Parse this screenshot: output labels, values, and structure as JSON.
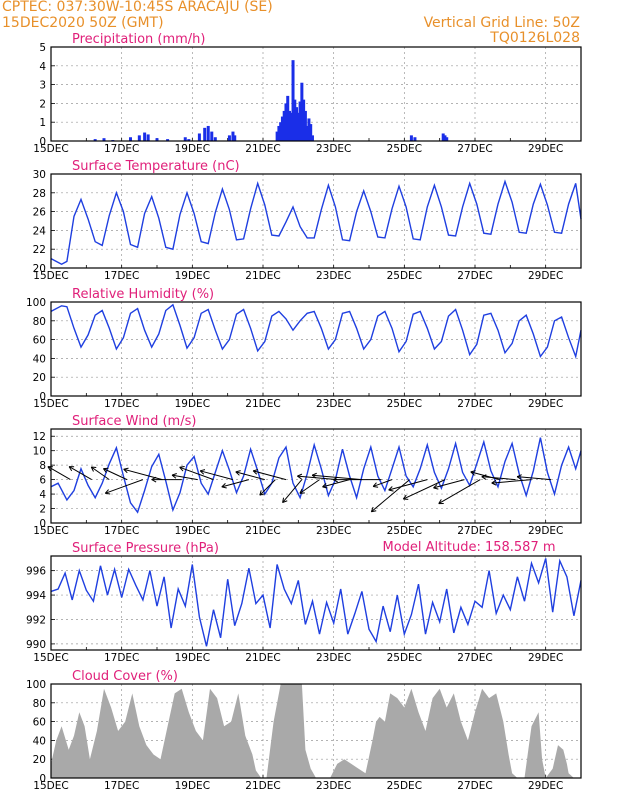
{
  "header": {
    "station": "CPTEC:   037:30W-10:45S   ARACAJU (SE)",
    "run": "15DEC2020 50Z (GMT)",
    "grid_line": "Vertical Grid Line: 50Z",
    "code": "TQ0126L028"
  },
  "colors": {
    "header": "#e8902a",
    "title": "#e0207a",
    "line": "#1f3fe0",
    "bar": "#1a2ee8",
    "cloud": "#a9a9a9",
    "grid": "#9a9a9a"
  },
  "x_tick_labels": [
    "15DEC",
    "17DEC",
    "19DEC",
    "21DEC",
    "23DEC",
    "25DEC",
    "27DEC",
    "29DEC"
  ],
  "x_tick_days": [
    0,
    2,
    4,
    6,
    8,
    10,
    12,
    14
  ],
  "chart_data": [
    {
      "type": "bar",
      "title": "Precipitation (mm/h)",
      "ylim": [
        0,
        5
      ],
      "yticks": [
        0,
        1,
        2,
        3,
        4,
        5
      ],
      "x": [
        1.25,
        1.5,
        1.75,
        2.25,
        2.5,
        2.65,
        2.75,
        3.0,
        3.3,
        3.8,
        3.9,
        4.2,
        4.35,
        4.45,
        4.55,
        4.65,
        5.05,
        5.15,
        5.2,
        6.4,
        6.45,
        6.5,
        6.55,
        6.6,
        6.65,
        6.7,
        6.75,
        6.8,
        6.85,
        6.9,
        6.95,
        7.0,
        7.05,
        7.1,
        7.15,
        7.2,
        7.25,
        7.3,
        7.35,
        7.4,
        10.2,
        10.3,
        11.1,
        11.15,
        11.2
      ],
      "values": [
        0.1,
        0.15,
        0.05,
        0.2,
        0.3,
        0.45,
        0.35,
        0.15,
        0.1,
        0.2,
        0.1,
        0.4,
        0.7,
        0.8,
        0.5,
        0.2,
        0.3,
        0.5,
        0.3,
        0.5,
        0.8,
        1.0,
        1.3,
        1.6,
        2.0,
        2.4,
        1.6,
        1.5,
        4.3,
        2.2,
        1.8,
        1.5,
        2.1,
        3.1,
        2.2,
        1.6,
        0.8,
        1.2,
        0.9,
        0.3,
        0.3,
        0.2,
        0.4,
        0.3,
        0.2
      ]
    },
    {
      "type": "line",
      "title": "Surface Temperature (nC)",
      "ylim": [
        20,
        30
      ],
      "yticks": [
        20,
        22,
        24,
        26,
        28,
        30
      ],
      "x": [
        0,
        0.3,
        0.45,
        0.65,
        0.85,
        1.05,
        1.25,
        1.45,
        1.65,
        1.85,
        2.05,
        2.25,
        2.45,
        2.65,
        2.85,
        3.05,
        3.25,
        3.45,
        3.65,
        3.85,
        4.05,
        4.25,
        4.45,
        4.65,
        4.85,
        5.05,
        5.25,
        5.45,
        5.65,
        5.85,
        6.05,
        6.25,
        6.45,
        6.65,
        6.85,
        7.05,
        7.25,
        7.45,
        7.65,
        7.85,
        8.05,
        8.25,
        8.45,
        8.65,
        8.85,
        9.05,
        9.25,
        9.45,
        9.65,
        9.85,
        10.05,
        10.25,
        10.45,
        10.65,
        10.85,
        11.05,
        11.25,
        11.45,
        11.65,
        11.85,
        12.05,
        12.25,
        12.45,
        12.65,
        12.85,
        13.05,
        13.25,
        13.45,
        13.65,
        13.85,
        14.05,
        14.25,
        14.45,
        14.65,
        14.85,
        15.0
      ],
      "values": [
        21,
        20.4,
        20.7,
        25.5,
        27.3,
        25.2,
        22.8,
        22.4,
        25.6,
        28,
        26,
        22.5,
        22.2,
        25.8,
        27.6,
        25.3,
        22.2,
        22,
        25.7,
        28,
        25.8,
        22.8,
        22.6,
        25.9,
        28.4,
        26.2,
        23,
        23.1,
        26.3,
        29,
        26.7,
        23.5,
        23.4,
        24.9,
        26.5,
        24.4,
        23.2,
        23.2,
        26.2,
        28.8,
        26.5,
        23,
        22.9,
        26,
        28.2,
        26,
        23.3,
        23.2,
        26.3,
        28.7,
        26.5,
        23.1,
        23,
        26.5,
        28.8,
        26.5,
        23.5,
        23.4,
        26.5,
        29,
        26.8,
        23.7,
        23.6,
        26.8,
        29.2,
        27,
        23.8,
        23.7,
        26.8,
        28.9,
        26.7,
        23.8,
        23.7,
        26.8,
        29,
        25.2
      ]
    },
    {
      "type": "line",
      "title": "Relative Humidity (%)",
      "ylim": [
        0,
        100
      ],
      "yticks": [
        0,
        20,
        40,
        60,
        80,
        100
      ],
      "x": [
        0,
        0.3,
        0.45,
        0.65,
        0.85,
        1.05,
        1.25,
        1.45,
        1.65,
        1.85,
        2.05,
        2.25,
        2.45,
        2.65,
        2.85,
        3.05,
        3.25,
        3.45,
        3.65,
        3.85,
        4.05,
        4.25,
        4.45,
        4.65,
        4.85,
        5.05,
        5.25,
        5.45,
        5.65,
        5.85,
        6.05,
        6.25,
        6.45,
        6.65,
        6.85,
        7.05,
        7.25,
        7.45,
        7.65,
        7.85,
        8.05,
        8.25,
        8.45,
        8.65,
        8.85,
        9.05,
        9.25,
        9.45,
        9.65,
        9.85,
        10.05,
        10.25,
        10.45,
        10.65,
        10.85,
        11.05,
        11.25,
        11.45,
        11.65,
        11.85,
        12.05,
        12.25,
        12.45,
        12.65,
        12.85,
        13.05,
        13.25,
        13.45,
        13.65,
        13.85,
        14.05,
        14.25,
        14.45,
        14.65,
        14.85,
        15.0
      ],
      "values": [
        90,
        96,
        95,
        72,
        52,
        65,
        86,
        91,
        72,
        50,
        62,
        88,
        93,
        70,
        52,
        66,
        91,
        97,
        75,
        51,
        62,
        88,
        92,
        70,
        50,
        60,
        87,
        92,
        72,
        48,
        58,
        85,
        90,
        82,
        70,
        80,
        88,
        90,
        72,
        50,
        60,
        88,
        90,
        72,
        50,
        60,
        85,
        90,
        72,
        47,
        58,
        87,
        90,
        72,
        50,
        58,
        85,
        92,
        70,
        44,
        55,
        86,
        88,
        70,
        46,
        56,
        80,
        86,
        66,
        42,
        52,
        80,
        84,
        62,
        42,
        70
      ]
    },
    {
      "type": "line",
      "title": "Surface Wind (m/s)",
      "ylim": [
        0,
        13
      ],
      "yticks": [
        0,
        2,
        4,
        6,
        8,
        10,
        12
      ],
      "x": [
        0,
        0.2,
        0.45,
        0.65,
        0.85,
        1.05,
        1.25,
        1.45,
        1.65,
        1.85,
        2.05,
        2.25,
        2.45,
        2.65,
        2.85,
        3.05,
        3.25,
        3.45,
        3.65,
        3.85,
        4.05,
        4.25,
        4.45,
        4.65,
        4.85,
        5.05,
        5.25,
        5.45,
        5.65,
        5.85,
        6.05,
        6.25,
        6.45,
        6.65,
        6.85,
        7.05,
        7.25,
        7.45,
        7.65,
        7.85,
        8.05,
        8.25,
        8.45,
        8.65,
        8.85,
        9.05,
        9.25,
        9.45,
        9.65,
        9.85,
        10.05,
        10.25,
        10.45,
        10.65,
        10.85,
        11.05,
        11.25,
        11.45,
        11.65,
        11.85,
        12.05,
        12.25,
        12.45,
        12.65,
        12.85,
        13.05,
        13.25,
        13.45,
        13.65,
        13.85,
        14.05,
        14.25,
        14.45,
        14.65,
        14.85,
        15.0
      ],
      "values": [
        5,
        5.5,
        3.2,
        4.5,
        7.5,
        5.2,
        3.5,
        5.5,
        8.2,
        10.4,
        6.5,
        2.8,
        1.5,
        4.5,
        7.8,
        9.5,
        5.8,
        1.8,
        4.2,
        8,
        9.2,
        5.5,
        4,
        7,
        10,
        7.3,
        4.2,
        6.5,
        10.2,
        7.2,
        4,
        5.5,
        9,
        10.5,
        5.5,
        3.5,
        6.8,
        10.8,
        7.5,
        3.8,
        6,
        10.2,
        6.5,
        3.5,
        7.5,
        10.5,
        6.5,
        4.5,
        7.5,
        10.5,
        6.5,
        5,
        7.5,
        10.8,
        7,
        4.8,
        7.5,
        11,
        7,
        5.2,
        8.2,
        11.2,
        7.2,
        5,
        8.5,
        11,
        6.8,
        3.8,
        7.2,
        11.8,
        7,
        4,
        8,
        10.5,
        7.5,
        10
      ]
    },
    {
      "type": "line",
      "title": "Surface Pressure (hPa)",
      "annotation": "Model Altitude: 158.587  m",
      "ylim": [
        989.5,
        997.2
      ],
      "yticks": [
        990,
        992,
        994,
        996
      ],
      "x": [
        0,
        0.2,
        0.4,
        0.6,
        0.8,
        1.0,
        1.2,
        1.4,
        1.6,
        1.8,
        2.0,
        2.2,
        2.4,
        2.6,
        2.8,
        3.0,
        3.2,
        3.4,
        3.6,
        3.8,
        4.0,
        4.2,
        4.4,
        4.6,
        4.8,
        5.0,
        5.2,
        5.4,
        5.6,
        5.8,
        6.0,
        6.2,
        6.4,
        6.6,
        6.8,
        7.0,
        7.2,
        7.4,
        7.6,
        7.8,
        8.0,
        8.2,
        8.4,
        8.6,
        8.8,
        9.0,
        9.2,
        9.4,
        9.6,
        9.8,
        10.0,
        10.2,
        10.4,
        10.6,
        10.8,
        11.0,
        11.2,
        11.4,
        11.6,
        11.8,
        12.0,
        12.2,
        12.4,
        12.6,
        12.8,
        13.0,
        13.2,
        13.4,
        13.6,
        13.8,
        14.0,
        14.2,
        14.4,
        14.6,
        14.8,
        15.0
      ],
      "values": [
        994.3,
        994.5,
        995.8,
        993.6,
        996,
        994.4,
        993.5,
        996.4,
        994,
        996.1,
        993.8,
        996.1,
        994.8,
        993.6,
        996,
        993.1,
        995.5,
        991.3,
        994.5,
        993.1,
        996.5,
        992.2,
        989.8,
        992.8,
        990.5,
        995.3,
        991.5,
        993.3,
        996.2,
        993.3,
        994,
        991.3,
        996.5,
        994.5,
        993.3,
        995.2,
        991.6,
        993.5,
        990.8,
        993.4,
        991.7,
        994.5,
        990.8,
        992.5,
        994.3,
        991.2,
        990.2,
        993.1,
        991,
        994,
        990.8,
        992.4,
        994.9,
        990.8,
        993.4,
        991.8,
        994.5,
        990.9,
        993,
        991.6,
        993.5,
        993,
        996,
        992.5,
        994,
        992.8,
        995.5,
        993.5,
        996.6,
        995,
        997,
        992.6,
        996.8,
        995.5,
        992.3,
        995.2
      ]
    },
    {
      "type": "area",
      "title": "Cloud Cover (%)",
      "ylim": [
        0,
        100
      ],
      "yticks": [
        0,
        20,
        40,
        60,
        80,
        100
      ],
      "x": [
        0,
        0.15,
        0.3,
        0.5,
        0.65,
        0.8,
        0.95,
        1.1,
        1.3,
        1.5,
        1.7,
        1.9,
        2.1,
        2.3,
        2.5,
        2.7,
        2.9,
        3.1,
        3.3,
        3.5,
        3.7,
        3.9,
        4.1,
        4.3,
        4.5,
        4.7,
        4.9,
        5.1,
        5.3,
        5.5,
        5.7,
        5.8,
        5.95,
        6.1,
        6.3,
        6.5,
        6.7,
        6.9,
        7.1,
        7.2,
        7.35,
        7.5,
        7.7,
        7.9,
        8.1,
        8.3,
        8.5,
        8.7,
        8.9,
        9.1,
        9.2,
        9.3,
        9.45,
        9.6,
        9.8,
        10.0,
        10.2,
        10.4,
        10.6,
        10.8,
        11.0,
        11.2,
        11.4,
        11.6,
        11.8,
        12.0,
        12.2,
        12.4,
        12.6,
        12.8,
        12.95,
        13.05,
        13.2,
        13.4,
        13.6,
        13.8,
        13.9,
        14.0,
        14.2,
        14.35,
        14.5,
        14.6,
        14.65,
        14.8,
        15.0
      ],
      "values": [
        15,
        40,
        55,
        30,
        45,
        70,
        55,
        20,
        50,
        95,
        75,
        50,
        60,
        90,
        55,
        35,
        25,
        20,
        55,
        90,
        95,
        70,
        50,
        40,
        95,
        85,
        55,
        60,
        90,
        45,
        25,
        8,
        0,
        0,
        60,
        100,
        100,
        100,
        100,
        30,
        10,
        0,
        0,
        0,
        15,
        20,
        15,
        10,
        5,
        40,
        60,
        65,
        60,
        90,
        85,
        75,
        95,
        70,
        50,
        85,
        95,
        75,
        90,
        60,
        40,
        70,
        95,
        85,
        90,
        60,
        25,
        5,
        0,
        0,
        55,
        70,
        20,
        0,
        10,
        35,
        30,
        15,
        5,
        0,
        0
      ]
    }
  ],
  "wind_arrows": [
    {
      "day": 0.55,
      "len": 26,
      "ang": 150
    },
    {
      "day": 1.15,
      "len": 26,
      "ang": 150
    },
    {
      "day": 1.65,
      "len": 22,
      "ang": 145
    },
    {
      "day": 2.15,
      "len": 26,
      "ang": 155
    },
    {
      "day": 2.6,
      "len": 40,
      "ang": 200
    },
    {
      "day": 3.15,
      "len": 40,
      "ang": 165
    },
    {
      "day": 3.7,
      "len": 30,
      "ang": 180
    },
    {
      "day": 4.15,
      "len": 26,
      "ang": 170
    },
    {
      "day": 4.6,
      "len": 36,
      "ang": 160
    },
    {
      "day": 5.15,
      "len": 34,
      "ang": 165
    },
    {
      "day": 5.6,
      "len": 28,
      "ang": 195
    },
    {
      "day": 6.05,
      "len": 30,
      "ang": 165
    },
    {
      "day": 6.35,
      "len": 22,
      "ang": 225
    },
    {
      "day": 6.65,
      "len": 34,
      "ang": 165
    },
    {
      "day": 7.1,
      "len": 30,
      "ang": 230
    },
    {
      "day": 7.6,
      "len": 24,
      "ang": 215
    },
    {
      "day": 8.1,
      "len": 40,
      "ang": 175
    },
    {
      "day": 8.45,
      "len": 28,
      "ang": 195
    },
    {
      "day": 8.8,
      "len": 50,
      "ang": 175
    },
    {
      "day": 9.35,
      "len": 48,
      "ang": 180
    },
    {
      "day": 9.65,
      "len": 20,
      "ang": 200
    },
    {
      "day": 10.15,
      "len": 50,
      "ang": 220
    },
    {
      "day": 10.65,
      "len": 40,
      "ang": 195
    },
    {
      "day": 11.15,
      "len": 46,
      "ang": 205
    },
    {
      "day": 11.7,
      "len": 32,
      "ang": 195
    },
    {
      "day": 12.15,
      "len": 48,
      "ang": 210
    },
    {
      "day": 12.7,
      "len": 30,
      "ang": 165
    },
    {
      "day": 13.15,
      "len": 34,
      "ang": 175
    },
    {
      "day": 13.6,
      "len": 40,
      "ang": 185
    },
    {
      "day": 14.15,
      "len": 34,
      "ang": 175
    }
  ]
}
